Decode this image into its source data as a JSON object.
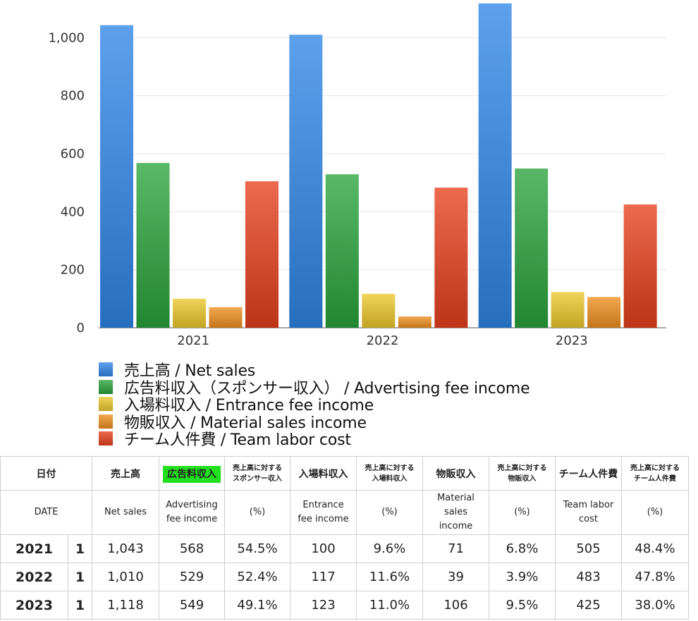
{
  "chart_data": {
    "type": "bar",
    "categories": [
      "2021",
      "2022",
      "2023"
    ],
    "ylim": [
      0,
      1120
    ],
    "yticks": [
      0,
      200,
      400,
      600,
      800,
      1000
    ],
    "ytick_labels": [
      "0",
      "200",
      "400",
      "600",
      "800",
      "1,000"
    ],
    "legend_position": "bottom",
    "grid": true,
    "series": [
      {
        "name": "売上高 / Net sales",
        "color": "#2f86e6",
        "values": [
          1043,
          1010,
          1118
        ]
      },
      {
        "name": "広告料収入（スポンサー収入） / Advertising fee income",
        "color": "#2aa43b",
        "values": [
          568,
          529,
          549
        ]
      },
      {
        "name": "入場料収入 / Entrance fee income",
        "color": "#ecc72a",
        "values": [
          100,
          117,
          123
        ]
      },
      {
        "name": "物販収入 / Material sales income",
        "color": "#ee8f1f",
        "values": [
          71,
          39,
          106
        ]
      },
      {
        "name": "チーム人件費 / Team labor cost",
        "color": "#e6401c",
        "values": [
          505,
          483,
          425
        ]
      }
    ]
  },
  "table": {
    "header_jp": [
      "日付",
      "売上高",
      "広告料収入",
      "売上高に対する\nスポンサー収入",
      "入場料収入",
      "売上高に対する\n入場料収入",
      "物販収入",
      "売上高に対する\n物販収入",
      "チーム人件費",
      "売上高に対する\nチーム人件費"
    ],
    "header_en": [
      "DATE",
      "Net sales",
      "Advertising\nfee income",
      "(%)",
      "Entrance\nfee income",
      "(%)",
      "Material\nsales\nincome",
      "(%)",
      "Team labor\ncost",
      "(%)"
    ],
    "highlight_color": "#22e01e",
    "rows": [
      {
        "year": "2021",
        "idx": "1",
        "net_sales": "1,043",
        "adv": "568",
        "adv_pct": "54.5%",
        "ent": "100",
        "ent_pct": "9.6%",
        "mat": "71",
        "mat_pct": "6.8%",
        "labor": "505",
        "labor_pct": "48.4%"
      },
      {
        "year": "2022",
        "idx": "1",
        "net_sales": "1,010",
        "adv": "529",
        "adv_pct": "52.4%",
        "ent": "117",
        "ent_pct": "11.6%",
        "mat": "39",
        "mat_pct": "3.9%",
        "labor": "483",
        "labor_pct": "47.8%"
      },
      {
        "year": "2023",
        "idx": "1",
        "net_sales": "1,118",
        "adv": "549",
        "adv_pct": "49.1%",
        "ent": "123",
        "ent_pct": "11.0%",
        "mat": "106",
        "mat_pct": "9.5%",
        "labor": "425",
        "labor_pct": "38.0%"
      }
    ]
  }
}
